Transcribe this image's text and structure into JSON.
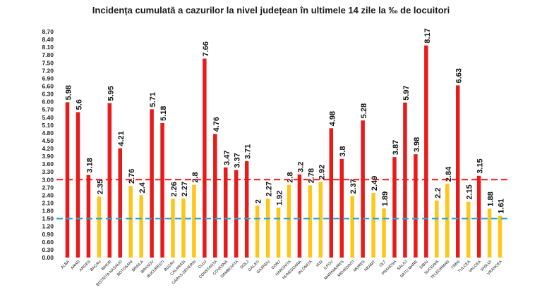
{
  "chart_data": {
    "type": "bar",
    "title": "Incidența cumulată a cazurilor la nivel județean în ultimele 14 zile la ‰ de locuitori",
    "xlabel": "",
    "ylabel": "",
    "ylim": [
      0,
      8.7
    ],
    "y_ticks": [
      "0.00",
      "0.30",
      "0.60",
      "0.90",
      "1.20",
      "1.50",
      "1.80",
      "2.10",
      "2.40",
      "2.70",
      "3.00",
      "3.30",
      "3.60",
      "3.90",
      "4.20",
      "4.50",
      "4.80",
      "5.10",
      "5.40",
      "5.70",
      "6.00",
      "6.30",
      "6.60",
      "6.90",
      "7.20",
      "7.50",
      "7.80",
      "8.10",
      "8.40",
      "8.70"
    ],
    "grid": false,
    "categories": [
      "ALBA",
      "ARAD",
      "ARGES",
      "BACAU",
      "BIHOR",
      "BISTRITA NASAUD",
      "BOTOSANI",
      "BRAILA",
      "BRASOV",
      "BUCURESTI",
      "BUZAU",
      "CALARASI",
      "CARAS-SEVERIN",
      "CLUJ",
      "CONSTANTA",
      "COVASNA",
      "DAMBOVITA",
      "DOLJ",
      "GALATI",
      "GIURGIU",
      "GORJ",
      "HARGHITA",
      "HUNEDOARA",
      "IALOMITA",
      "IASI",
      "ILFOV",
      "MARAMURES",
      "MEHEDINTI",
      "MURES",
      "NEAMT",
      "OLT",
      "PRAHOVA",
      "SALAJ",
      "SATU MARE",
      "SIBIU",
      "SUCEAVA",
      "TELEORMAN",
      "TIMIS",
      "TULCEA",
      "VALCEA",
      "VASLUI",
      "VRANCEA"
    ],
    "values": [
      5.98,
      5.6,
      3.18,
      2.35,
      5.95,
      4.21,
      2.76,
      2.4,
      5.71,
      5.18,
      2.26,
      2.27,
      2.8,
      7.66,
      4.76,
      3.47,
      3.37,
      3.71,
      2,
      2.27,
      1.92,
      2.8,
      3.2,
      2.78,
      2.92,
      4.98,
      3.8,
      2.37,
      5.28,
      2.49,
      1.89,
      3.87,
      5.97,
      3.98,
      8.17,
      2.2,
      2.84,
      6.63,
      2.15,
      3.15,
      1.88,
      1.61
    ],
    "data_labels": [
      "5.98",
      "5.6",
      "3.18",
      "2.35",
      "5.95",
      "4.21",
      "2.76",
      "2.4",
      "5.71",
      "5.18",
      "2.26",
      "2.27",
      "2.8",
      "7.66",
      "4.76",
      "3.47",
      "3.37",
      "3.71",
      "2",
      "2.27",
      "1.92",
      "2.8",
      "3.2",
      "2.78",
      "2.92",
      "4.98",
      "3.8",
      "2.37",
      "5.28",
      "2.49",
      "1.89",
      "3.87",
      "5.97",
      "3.98",
      "8.17",
      "2.2",
      "2.84",
      "6.63",
      "2.15",
      "3.15",
      "1.88",
      "1.61"
    ],
    "thresholds": [
      {
        "value": 3.0,
        "color": "#e81b1b",
        "style": "dashed"
      },
      {
        "value": 1.5,
        "color": "#2aa7d8",
        "style": "dashed"
      }
    ],
    "colors": {
      "above_3": "#e81b1b",
      "below_3": "#ffc61a"
    }
  }
}
